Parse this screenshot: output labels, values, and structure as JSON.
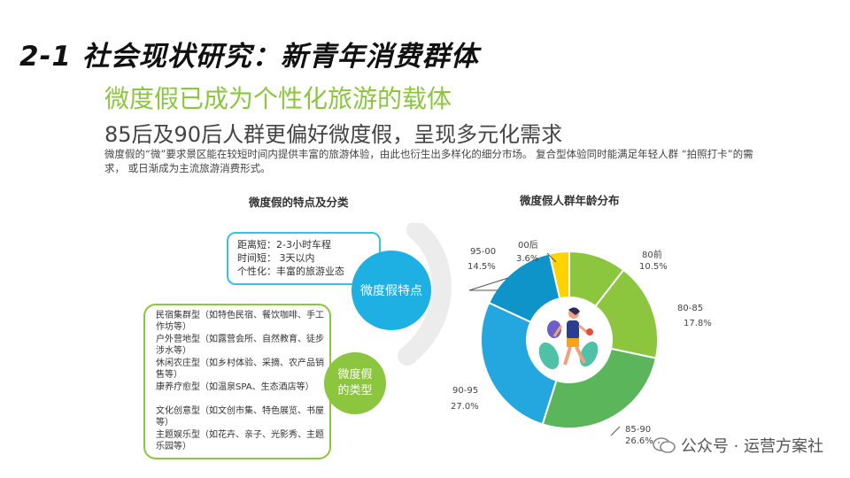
{
  "header": {
    "title": "2-1 社会现状研究：新青年消费群体",
    "subtitle": "微度假已成为个性化旅游的载体",
    "subheading": "85后及90后人群更偏好微度假，呈现多元化需求",
    "paragraph": "微度假的“微”要求景区能在较短时间内提供丰富的旅游体验，由此也衍生出多样化的细分市场。 复合型体验同时能满足年轻人群 “拍照打卡”的需求， 或日渐成为主流旅游消费形式。"
  },
  "left": {
    "section_title": "微度假的特点及分类",
    "features": [
      "距离短：2-3小时车程",
      "时间短： 3天以内",
      "个性化：丰富的旅游业态"
    ],
    "feature_bubble": "微度假特点",
    "type_bubble_line1": "微度假",
    "type_bubble_line2": "的类型",
    "types": [
      "民宿集群型（如特色民宿、餐饮咖啡、手工作坊等）",
      "户外营地型（如露营会所、自然教育、徒步涉水等）",
      "休闲农庄型（如乡村体验、采摘、农产品销售等）",
      "康养疗愈型（如温泉SPA、生态酒店等）",
      "文化创意型（如文创市集、特色展览、书屋等）",
      "主题娱乐型（如花卉、亲子、光影秀、主题乐园等）"
    ]
  },
  "right": {
    "section_title": "微度假人群年龄分布"
  },
  "chart_data": {
    "type": "pie",
    "title": "微度假人群年龄分布",
    "categories": [
      "80前",
      "80-85",
      "85-90",
      "90-95",
      "95-00",
      "00后"
    ],
    "values": [
      10.5,
      17.8,
      26.6,
      27.0,
      14.5,
      3.6
    ],
    "value_labels": [
      "10.5%",
      "17.8%",
      "26.6%",
      "27.0%",
      "14.5%",
      "3.6%"
    ],
    "colors": [
      "#8cc63f",
      "#8cc63f",
      "#5bb55a",
      "#23a7de",
      "#0e94c9",
      "#ffd200"
    ]
  },
  "watermark": {
    "text": "公众号 · 运营方案社"
  }
}
